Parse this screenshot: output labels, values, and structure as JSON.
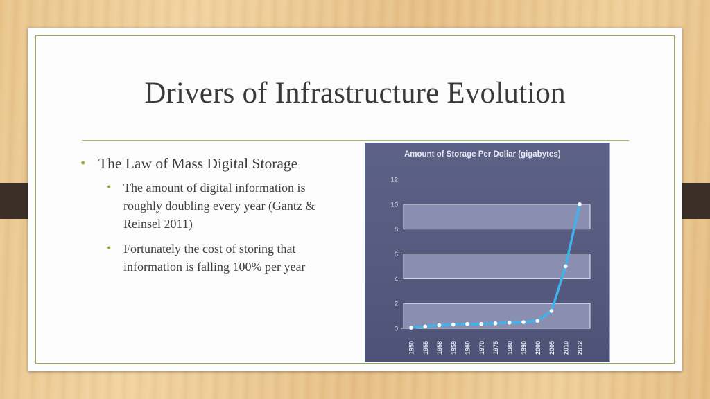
{
  "slide": {
    "title": "Drivers of Infrastructure Evolution",
    "bullet_main": "The Law of Mass Digital Storage",
    "sub_bullets": [
      "The amount of digital information is roughly doubling every year (Gantz & Reinsel 2011)",
      "Fortunately the cost of storing that information is falling 100% per year"
    ]
  },
  "colors": {
    "accent": "#93b041",
    "line": "#3fb4ea",
    "band": "#8a8fb2",
    "chart_bg": "#565b7f"
  },
  "chart_data": {
    "type": "line",
    "title": "Amount of Storage Per Dollar (gigabytes)",
    "xlabel": "",
    "ylabel": "",
    "categories": [
      "1950",
      "1955",
      "1958",
      "1959",
      "1960",
      "1970",
      "1975",
      "1980",
      "1990",
      "2000",
      "2005",
      "2010",
      "2012"
    ],
    "values": [
      0.05,
      0.15,
      0.25,
      0.3,
      0.35,
      0.35,
      0.4,
      0.45,
      0.5,
      0.6,
      1.4,
      5.0,
      10.0
    ],
    "ylim": [
      0,
      12
    ],
    "yticks": [
      0,
      2,
      4,
      6,
      8,
      10,
      12
    ],
    "grid": true,
    "legend": "none"
  }
}
